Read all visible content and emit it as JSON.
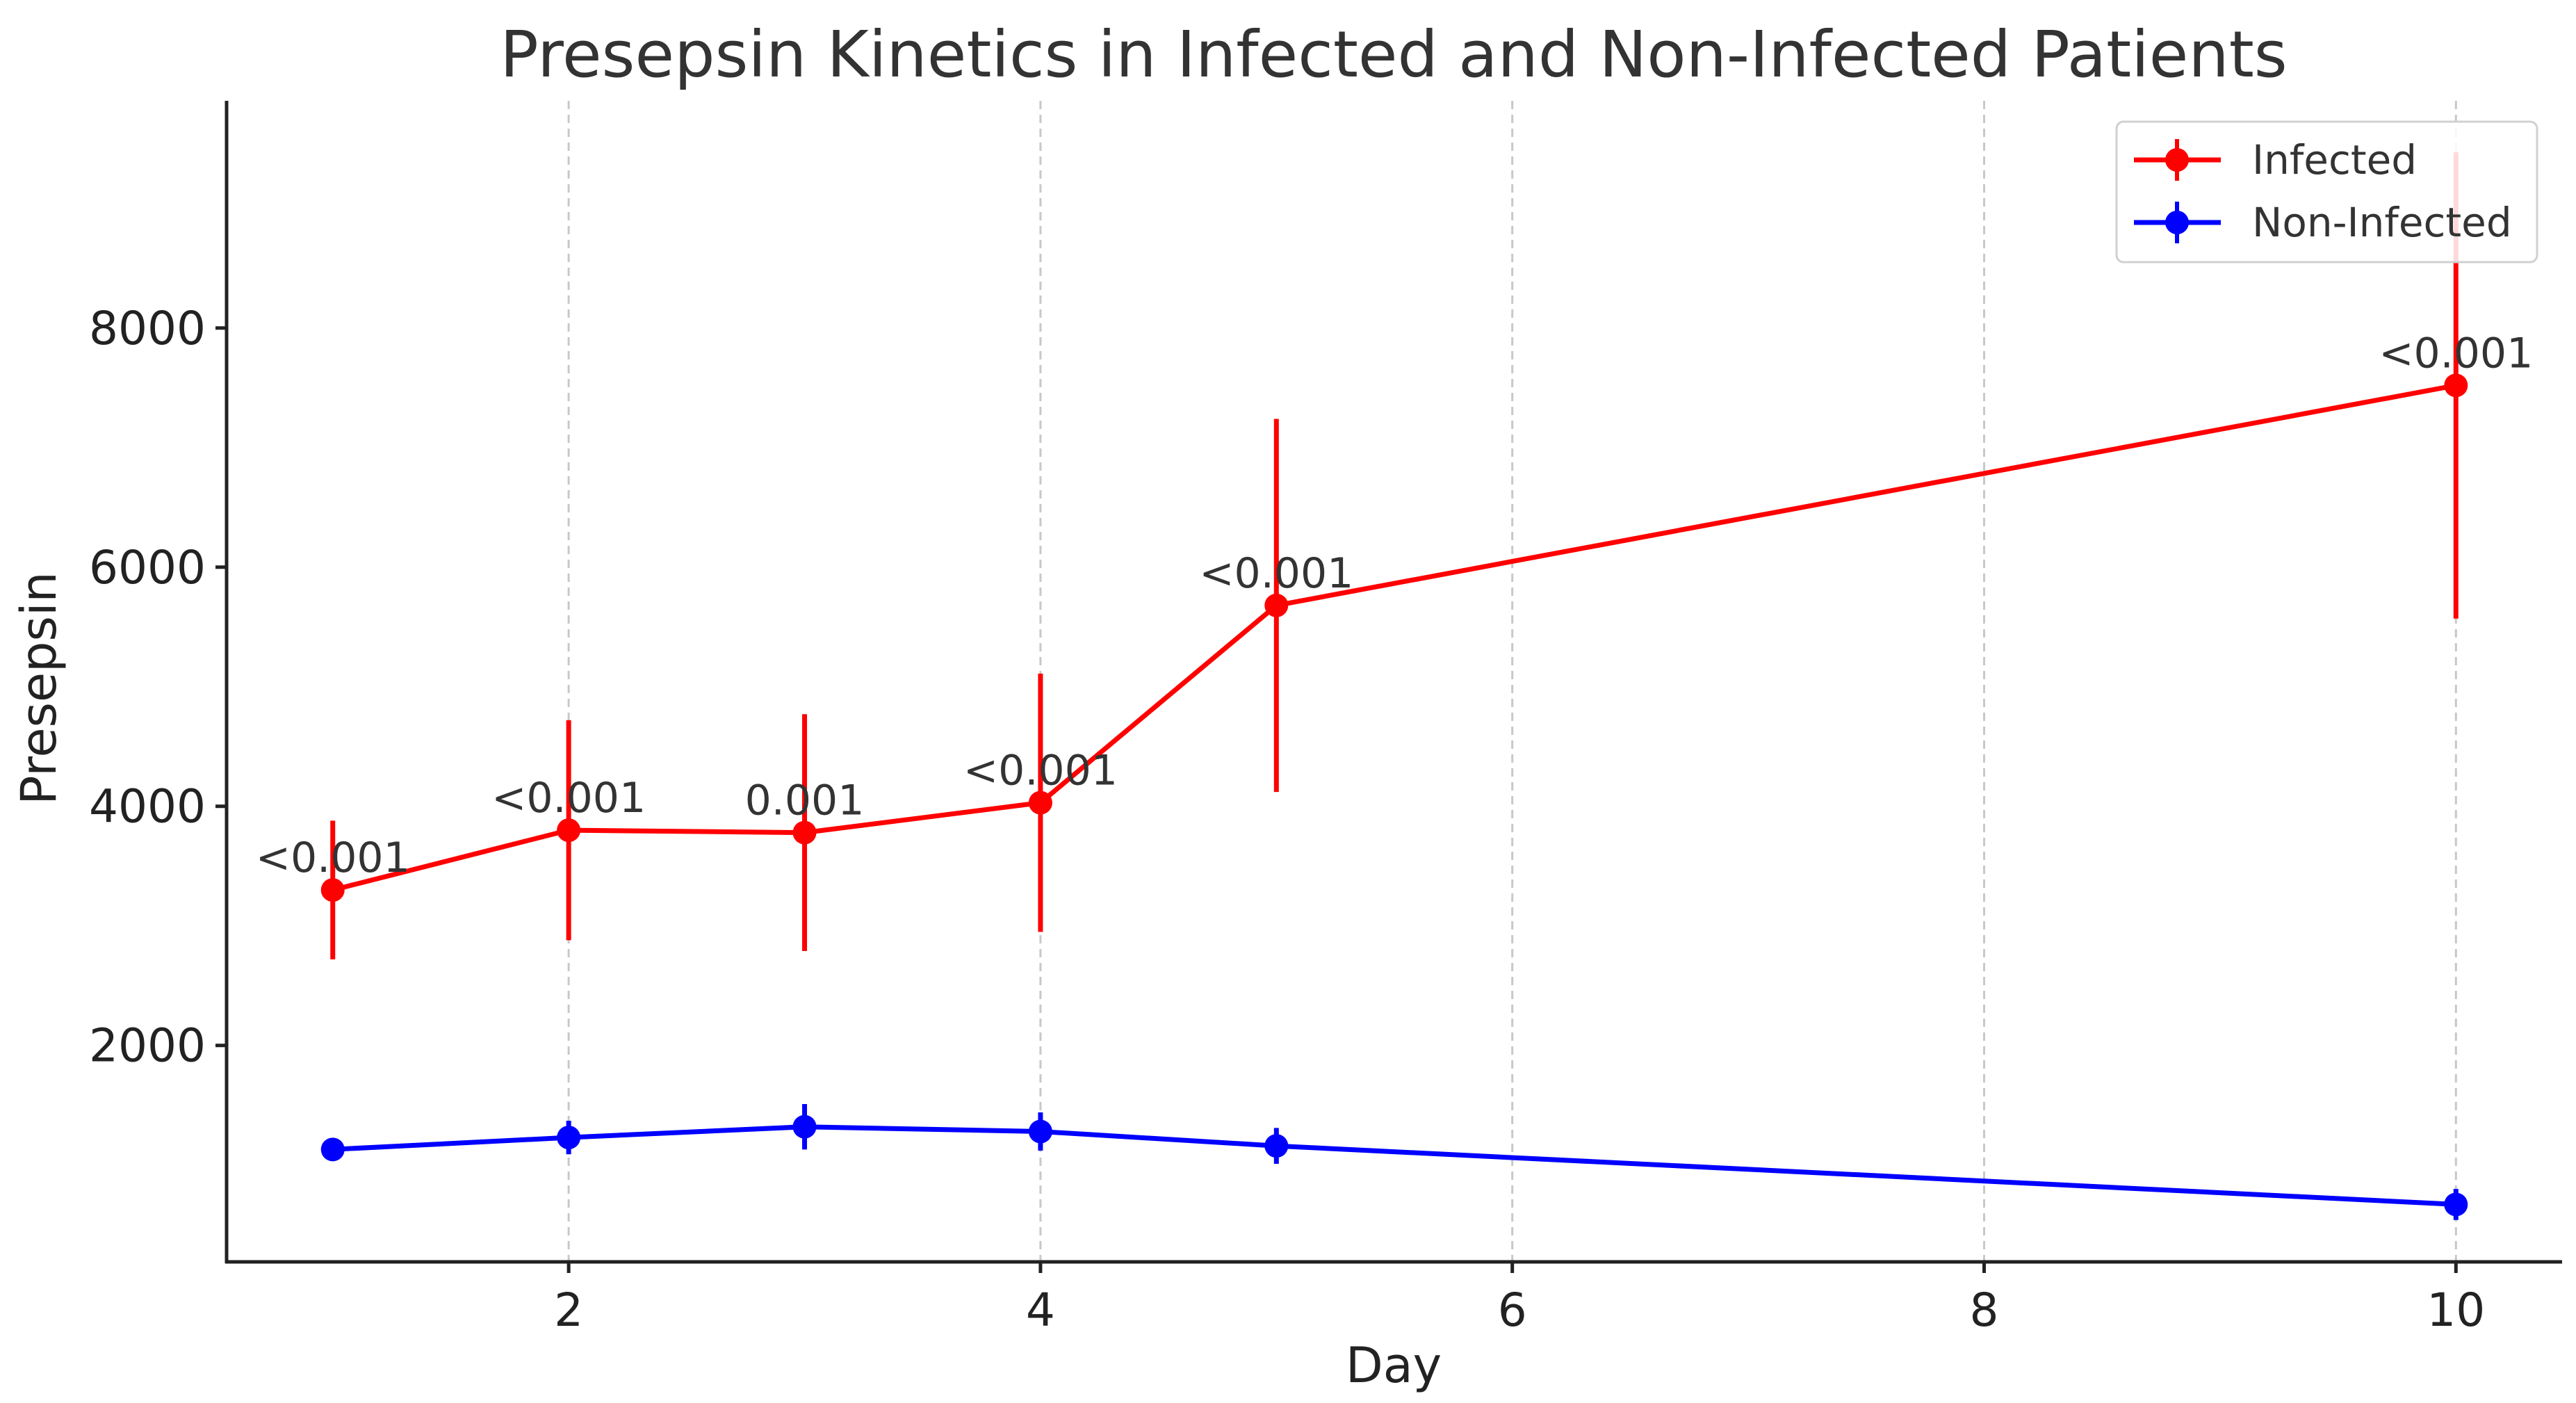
{
  "chart_data": {
    "type": "line",
    "title": "Presepsin Kinetics in Infected and Non-Infected Patients",
    "xlabel": "Day",
    "ylabel": "Presepsin",
    "xlim": [
      0.55,
      10.45
    ],
    "ylim": [
      190,
      9900
    ],
    "xticks": [
      2,
      4,
      6,
      8,
      10
    ],
    "yticks": [
      2000,
      4000,
      6000,
      8000
    ],
    "grid": "vertical-dashed",
    "legend_position": "top-right",
    "x": [
      1,
      2,
      3,
      4,
      5,
      10
    ],
    "series": [
      {
        "name": "Infected",
        "color": "#ff0000",
        "values": [
          3300,
          3800,
          3780,
          4030,
          5680,
          7520
        ],
        "error": [
          580,
          920,
          990,
          1080,
          1560,
          1950
        ],
        "annotations": [
          "<0.001",
          "<0.001",
          "0.001",
          "<0.001",
          "<0.001",
          "<0.001"
        ]
      },
      {
        "name": "Non-Infected",
        "color": "#0000ff",
        "values": [
          1130,
          1230,
          1320,
          1280,
          1160,
          670
        ],
        "error": [
          90,
          140,
          190,
          160,
          150,
          130
        ]
      }
    ]
  }
}
